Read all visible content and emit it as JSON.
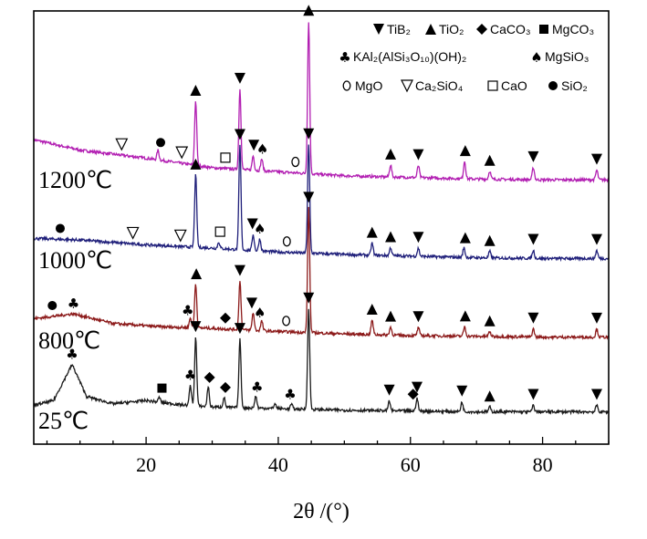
{
  "chart_data": {
    "type": "line",
    "xlabel": "2θ /(°)",
    "ylabel": "",
    "xlim": [
      3,
      90
    ],
    "x_ticks": [
      20,
      40,
      60,
      80
    ],
    "x_tick_labels": [
      "20",
      "40",
      "60",
      "80"
    ],
    "y_ticks_shown": false,
    "grid": false,
    "legend": {
      "placement": "top-right",
      "entries": [
        {
          "marker": "down-triangle",
          "label": "TiB₂"
        },
        {
          "marker": "up-triangle",
          "label": "TiO₂"
        },
        {
          "marker": "diamond",
          "label": "CaCO₃"
        },
        {
          "marker": "filled-square",
          "label": "MgCO₃"
        },
        {
          "marker": "club",
          "label": "KAl₂(AlSi₃O₁₀)(OH)₂"
        },
        {
          "marker": "spade",
          "label": "MgSiO₃"
        },
        {
          "marker": "open-circle",
          "label": "MgO"
        },
        {
          "marker": "open-down-triangle",
          "label": "Ca₂SiO₄"
        },
        {
          "marker": "open-square",
          "label": "CaO"
        },
        {
          "marker": "filled-circle",
          "label": "SiO₂"
        }
      ]
    },
    "series": [
      {
        "name": "1200℃",
        "color": "#b21fb2",
        "offset": 3,
        "baseline": [
          [
            3,
            0.35
          ],
          [
            10,
            0.22
          ],
          [
            20,
            0.12
          ],
          [
            30,
            0.0
          ],
          [
            40,
            -0.05
          ],
          [
            50,
            -0.1
          ],
          [
            60,
            -0.12
          ],
          [
            70,
            -0.14
          ],
          [
            80,
            -0.15
          ],
          [
            89,
            -0.15
          ]
        ],
        "peaks": [
          [
            21.8,
            0.12
          ],
          [
            27.5,
            0.8
          ],
          [
            34.2,
            1.0
          ],
          [
            36.2,
            0.18
          ],
          [
            37.5,
            0.15
          ],
          [
            44.6,
            1.9
          ],
          [
            57.0,
            0.15
          ],
          [
            61.2,
            0.15
          ],
          [
            68.2,
            0.22
          ],
          [
            72.0,
            0.1
          ],
          [
            78.6,
            0.15
          ],
          [
            88.2,
            0.12
          ]
        ],
        "markers": [
          {
            "x": 16.3,
            "m": "open-down-triangle"
          },
          {
            "x": 22.2,
            "m": "filled-circle"
          },
          {
            "x": 25.4,
            "m": "open-down-triangle"
          },
          {
            "x": 27.5,
            "m": "up-triangle"
          },
          {
            "x": 32.0,
            "m": "open-square"
          },
          {
            "x": 34.2,
            "m": "down-triangle"
          },
          {
            "x": 36.3,
            "m": "down-triangle"
          },
          {
            "x": 37.6,
            "m": "spade"
          },
          {
            "x": 42.6,
            "m": "open-circle"
          },
          {
            "x": 44.6,
            "m": "up-triangle"
          },
          {
            "x": 57.0,
            "m": "up-triangle"
          },
          {
            "x": 61.2,
            "m": "down-triangle"
          },
          {
            "x": 68.3,
            "m": "up-triangle"
          },
          {
            "x": 72.0,
            "m": "up-triangle"
          },
          {
            "x": 78.6,
            "m": "down-triangle"
          },
          {
            "x": 88.2,
            "m": "down-triangle"
          }
        ]
      },
      {
        "name": "1000℃",
        "color": "#1f1f7a",
        "offset": 2,
        "baseline": [
          [
            3,
            0.12
          ],
          [
            10,
            0.1
          ],
          [
            20,
            0.04
          ],
          [
            30,
            0.0
          ],
          [
            40,
            -0.05
          ],
          [
            50,
            -0.08
          ],
          [
            60,
            -0.1
          ],
          [
            70,
            -0.12
          ],
          [
            80,
            -0.13
          ],
          [
            89,
            -0.13
          ]
        ],
        "peaks": [
          [
            27.5,
            0.9
          ],
          [
            31.0,
            0.08
          ],
          [
            34.2,
            1.3
          ],
          [
            36.2,
            0.2
          ],
          [
            37.2,
            0.15
          ],
          [
            44.6,
            1.35
          ],
          [
            54.2,
            0.15
          ],
          [
            57.0,
            0.1
          ],
          [
            61.2,
            0.1
          ],
          [
            68.1,
            0.12
          ],
          [
            72.0,
            0.08
          ],
          [
            78.6,
            0.1
          ],
          [
            88.2,
            0.1
          ]
        ],
        "markers": [
          {
            "x": 7.0,
            "m": "filled-circle"
          },
          {
            "x": 18.0,
            "m": "open-down-triangle"
          },
          {
            "x": 25.2,
            "m": "open-down-triangle"
          },
          {
            "x": 27.5,
            "m": "up-triangle"
          },
          {
            "x": 31.2,
            "m": "open-square"
          },
          {
            "x": 34.2,
            "m": "down-triangle"
          },
          {
            "x": 36.1,
            "m": "down-triangle"
          },
          {
            "x": 37.2,
            "m": "spade"
          },
          {
            "x": 41.3,
            "m": "open-circle"
          },
          {
            "x": 44.6,
            "m": "down-triangle"
          },
          {
            "x": 54.2,
            "m": "up-triangle"
          },
          {
            "x": 57.0,
            "m": "up-triangle"
          },
          {
            "x": 61.2,
            "m": "down-triangle"
          },
          {
            "x": 68.3,
            "m": "up-triangle"
          },
          {
            "x": 72.0,
            "m": "up-triangle"
          },
          {
            "x": 78.6,
            "m": "down-triangle"
          },
          {
            "x": 88.2,
            "m": "down-triangle"
          }
        ]
      },
      {
        "name": "800℃",
        "color": "#8c1a1a",
        "offset": 1,
        "baseline": [
          [
            3,
            0.12
          ],
          [
            9,
            0.18
          ],
          [
            15,
            0.06
          ],
          [
            22,
            0.02
          ],
          [
            30,
            0.0
          ],
          [
            40,
            -0.04
          ],
          [
            50,
            -0.07
          ],
          [
            60,
            -0.09
          ],
          [
            70,
            -0.1
          ],
          [
            80,
            -0.11
          ],
          [
            89,
            -0.11
          ]
        ],
        "peaks": [
          [
            26.7,
            0.12
          ],
          [
            27.5,
            0.55
          ],
          [
            34.2,
            0.6
          ],
          [
            36.2,
            0.22
          ],
          [
            37.5,
            0.12
          ],
          [
            44.6,
            1.55
          ],
          [
            54.2,
            0.18
          ],
          [
            57.0,
            0.1
          ],
          [
            61.2,
            0.1
          ],
          [
            68.2,
            0.12
          ],
          [
            72.0,
            0.06
          ],
          [
            78.6,
            0.1
          ],
          [
            88.2,
            0.1
          ]
        ],
        "markers": [
          {
            "x": 5.8,
            "m": "filled-circle"
          },
          {
            "x": 9.0,
            "m": "club"
          },
          {
            "x": 26.3,
            "m": "club"
          },
          {
            "x": 27.6,
            "m": "up-triangle"
          },
          {
            "x": 32.0,
            "m": "diamond"
          },
          {
            "x": 34.2,
            "m": "down-triangle"
          },
          {
            "x": 36.0,
            "m": "down-triangle"
          },
          {
            "x": 37.2,
            "m": "spade"
          },
          {
            "x": 41.2,
            "m": "open-circle"
          },
          {
            "x": 44.6,
            "m": "down-triangle"
          },
          {
            "x": 54.2,
            "m": "up-triangle"
          },
          {
            "x": 57.0,
            "m": "up-triangle"
          },
          {
            "x": 61.2,
            "m": "down-triangle"
          },
          {
            "x": 68.3,
            "m": "up-triangle"
          },
          {
            "x": 72.0,
            "m": "up-triangle"
          },
          {
            "x": 78.6,
            "m": "down-triangle"
          },
          {
            "x": 88.2,
            "m": "down-triangle"
          }
        ]
      },
      {
        "name": "25℃",
        "color": "#1a1a1a",
        "offset": 0,
        "baseline": [
          [
            3,
            0.04
          ],
          [
            6,
            0.1
          ],
          [
            8.8,
            0.55
          ],
          [
            11,
            0.15
          ],
          [
            15,
            0.06
          ],
          [
            20,
            0.1
          ],
          [
            25,
            0.05
          ],
          [
            30,
            0.02
          ],
          [
            40,
            0.0
          ],
          [
            50,
            -0.02
          ],
          [
            60,
            -0.03
          ],
          [
            70,
            -0.04
          ],
          [
            80,
            -0.04
          ],
          [
            89,
            -0.04
          ]
        ],
        "peaks": [
          [
            22.0,
            0.06
          ],
          [
            26.7,
            0.25
          ],
          [
            27.5,
            0.85
          ],
          [
            29.4,
            0.25
          ],
          [
            31.8,
            0.12
          ],
          [
            34.2,
            0.85
          ],
          [
            36.6,
            0.15
          ],
          [
            39.5,
            0.06
          ],
          [
            42.0,
            0.06
          ],
          [
            44.6,
            1.25
          ],
          [
            56.8,
            0.12
          ],
          [
            61.0,
            0.16
          ],
          [
            67.8,
            0.12
          ],
          [
            72.0,
            0.06
          ],
          [
            78.6,
            0.08
          ],
          [
            88.2,
            0.08
          ]
        ],
        "markers": [
          {
            "x": 8.8,
            "m": "club"
          },
          {
            "x": 22.4,
            "m": "filled-square"
          },
          {
            "x": 26.7,
            "m": "club"
          },
          {
            "x": 27.5,
            "m": "down-triangle"
          },
          {
            "x": 29.6,
            "m": "diamond"
          },
          {
            "x": 32.0,
            "m": "diamond"
          },
          {
            "x": 34.2,
            "m": "down-triangle"
          },
          {
            "x": 36.8,
            "m": "club"
          },
          {
            "x": 41.8,
            "m": "club"
          },
          {
            "x": 44.6,
            "m": "down-triangle"
          },
          {
            "x": 56.8,
            "m": "down-triangle"
          },
          {
            "x": 60.4,
            "m": "diamond"
          },
          {
            "x": 61.0,
            "m": "down-triangle"
          },
          {
            "x": 67.8,
            "m": "down-triangle"
          },
          {
            "x": 72.0,
            "m": "up-triangle"
          },
          {
            "x": 78.6,
            "m": "down-triangle"
          },
          {
            "x": 88.2,
            "m": "down-triangle"
          }
        ]
      }
    ]
  }
}
